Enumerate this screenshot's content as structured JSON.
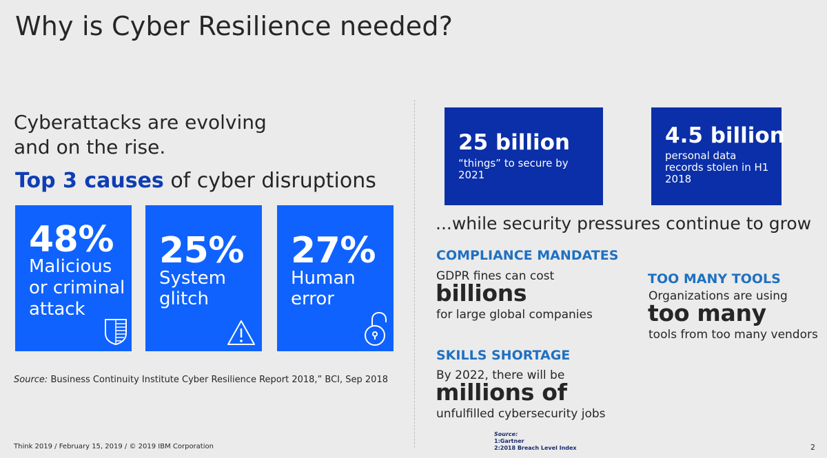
{
  "slide": {
    "title": "Why is Cyber Resilience needed?",
    "headline_line1": "Cyberattacks are evolving",
    "headline_line2": "and on the rise.",
    "top3_highlight": "Top 3 causes",
    "top3_rest": " of cyber disruptions"
  },
  "causes": [
    {
      "percent": "48%",
      "line1": "Malicious",
      "line2": "or criminal",
      "line3": "attack",
      "icon": "shield-icon"
    },
    {
      "percent": "25%",
      "line1": "System",
      "line2": "glitch",
      "icon": "warning-icon"
    },
    {
      "percent": "27%",
      "line1": "Human",
      "line2": "error",
      "icon": "unlock-icon"
    }
  ],
  "left_source": {
    "label": "Source:",
    "text": " Business Continuity Institute Cyber Resilience Report 2018,” BCI, Sep 2018"
  },
  "stats": [
    {
      "big": "25 billion",
      "line1": "“things” to secure by",
      "line2": "2021"
    },
    {
      "big": "4.5 billion",
      "line1": "personal data",
      "line2": "records stolen in H1",
      "line3": "2018"
    }
  ],
  "pressures": "...while security pressures continue to grow",
  "compliance": {
    "heading": "COMPLIANCE MANDATES",
    "line1": "GDPR fines can cost",
    "big": "billions",
    "line2": "for large global companies"
  },
  "tools": {
    "heading": "TOO MANY TOOLS",
    "line1": "Organizations are using",
    "big": "too many",
    "line2": "tools from too many vendors"
  },
  "skills": {
    "heading": "SKILLS SHORTAGE",
    "line1": "By 2022, there will be",
    "big": "millions of",
    "line2": "unfulfilled cybersecurity jobs"
  },
  "footer": {
    "text": "Think 2019 / February 15, 2019 / © 2019 IBM Corporation",
    "source_label": "Source:",
    "source_1": "1:Gartner",
    "source_2": "2:2018 Breach Level Index",
    "page_number": "2"
  },
  "colors": {
    "card_blue": "#0f62fe",
    "stat_blue": "#0b2fa8",
    "heading_blue": "#1f70c1",
    "top3_blue": "#0f3db3",
    "background": "#ebebeb"
  }
}
